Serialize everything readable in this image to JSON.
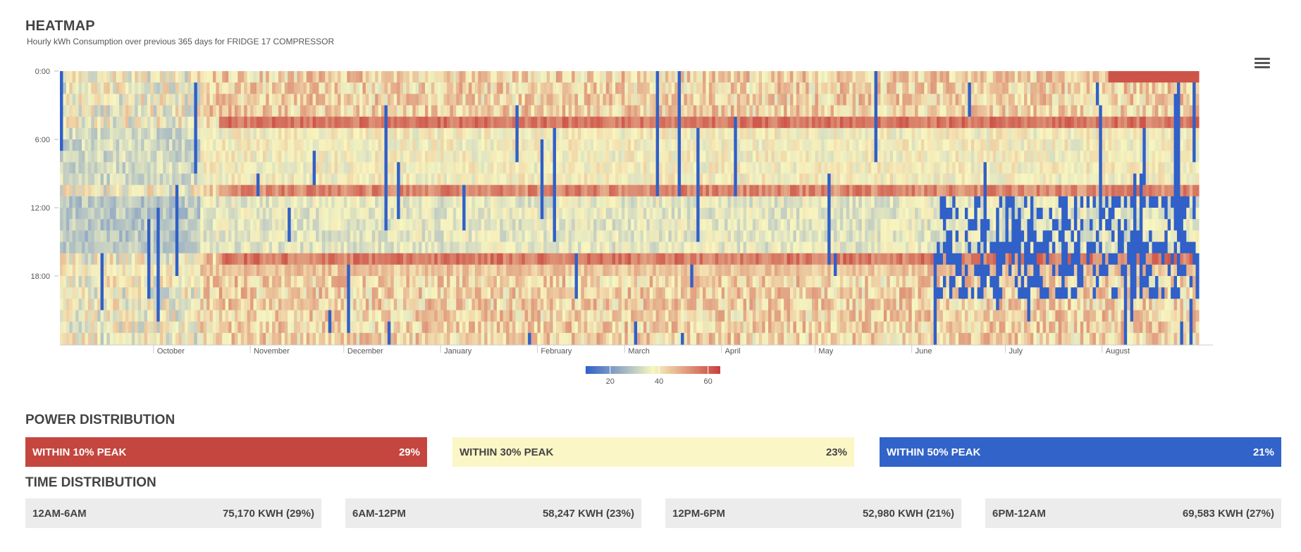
{
  "header": {
    "title": "HEATMAP",
    "subtitle": "Hourly kWh Consumption over previous 365 days for FRIDGE 17 COMPRESSOR",
    "menu_icon": "hamburger-menu-icon"
  },
  "chart_data": {
    "type": "heatmap",
    "title": "HEATMAP",
    "subtitle": "Hourly kWh Consumption over previous 365 days for FRIDGE 17 COMPRESSOR",
    "xlabel": "",
    "ylabel": "",
    "x_tick_labels": [
      "October",
      "November",
      "December",
      "January",
      "February",
      "March",
      "April",
      "May",
      "June",
      "July",
      "August"
    ],
    "y_tick_labels": [
      "0:00",
      "6:00",
      "12:00",
      "18:00"
    ],
    "y_range_hours": [
      0,
      24
    ],
    "days": 365,
    "color_axis": {
      "ticks": [
        20,
        40,
        60
      ],
      "range": [
        10,
        65
      ],
      "stops": [
        "#3060c8",
        "#f8f6c0",
        "#c8403a"
      ]
    },
    "grid": false,
    "legend_placement": "bottom-center"
  },
  "power_distribution": {
    "title": "POWER DISTRIBUTION",
    "items": [
      {
        "label": "WITHIN 10% PEAK",
        "value": "29%",
        "color": "#c4463e",
        "text_color": "#ffffff"
      },
      {
        "label": "WITHIN 30% PEAK",
        "value": "23%",
        "color": "#fbf6c6",
        "text_color": "#444444"
      },
      {
        "label": "WITHIN 50% PEAK",
        "value": "21%",
        "color": "#3263c8",
        "text_color": "#ffffff"
      }
    ]
  },
  "time_distribution": {
    "title": "TIME DISTRIBUTION",
    "items": [
      {
        "label": "12AM-6AM",
        "value": "75,170 KWH (29%)"
      },
      {
        "label": "6AM-12PM",
        "value": "58,247 KWH (23%)"
      },
      {
        "label": "12PM-6PM",
        "value": "52,980 KWH (21%)"
      },
      {
        "label": "6PM-12AM",
        "value": "69,583 KWH (27%)"
      }
    ]
  }
}
